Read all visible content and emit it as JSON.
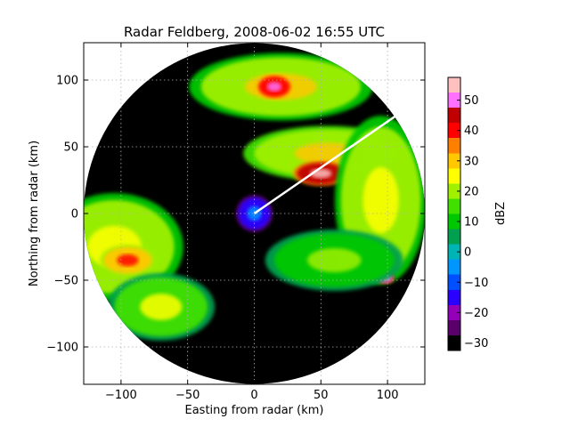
{
  "chart_data": {
    "type": "heatmap",
    "subtype": "radar-ppi",
    "title": "Radar Feldberg, 2008-06-02 16:55 UTC",
    "xlabel": "Easting from radar (km)",
    "ylabel": "Northing from radar (km)",
    "xlim": [
      -128,
      128
    ],
    "ylim": [
      -128,
      128
    ],
    "xticks": [
      -100,
      -50,
      0,
      50,
      100
    ],
    "yticks": [
      -100,
      -50,
      0,
      50,
      100
    ],
    "xtick_labels": [
      "−100",
      "−50",
      "0",
      "50",
      "100"
    ],
    "ytick_labels": [
      "−100",
      "−50",
      "0",
      "50",
      "100"
    ],
    "grid": true,
    "radar_range_km": 128,
    "colorbar": {
      "label": "dBZ",
      "range": [
        -32.5,
        57.5
      ],
      "ticks": [
        -30,
        -20,
        -10,
        0,
        10,
        20,
        30,
        40,
        50
      ],
      "tick_labels": [
        "−30",
        "−20",
        "−10",
        "0",
        "10",
        "20",
        "30",
        "40",
        "50"
      ],
      "colors": [
        "#000000",
        "#5a006a",
        "#9400b8",
        "#2a00ff",
        "#0050ff",
        "#0096ff",
        "#00b4b4",
        "#00a050",
        "#00c800",
        "#40e000",
        "#a0f000",
        "#ffff00",
        "#ffc800",
        "#ff8000",
        "#ff0000",
        "#c00000",
        "#ff70ff",
        "#ffc0c0"
      ]
    },
    "annotation_line": {
      "from": [
        0,
        0
      ],
      "to": [
        106,
        73
      ],
      "color": "#ffffff"
    },
    "echo_regions": [
      {
        "name": "western band",
        "center": [
          -105,
          -25
        ],
        "radii": [
          45,
          35
        ],
        "dbz": 18
      },
      {
        "name": "western core",
        "center": [
          -95,
          -35
        ],
        "radii": [
          18,
          10
        ],
        "dbz": 30
      },
      {
        "name": "southwest band",
        "center": [
          -70,
          -70
        ],
        "radii": [
          35,
          22
        ],
        "dbz": 15
      },
      {
        "name": "north band",
        "center": [
          20,
          95
        ],
        "radii": [
          60,
          22
        ],
        "dbz": 20
      },
      {
        "name": "north core",
        "center": [
          15,
          95
        ],
        "radii": [
          12,
          8
        ],
        "dbz": 40
      },
      {
        "name": "northeast line",
        "center": [
          55,
          45
        ],
        "radii": [
          55,
          18
        ],
        "dbz": 22
      },
      {
        "name": "northeast cells",
        "center": [
          50,
          30
        ],
        "radii": [
          18,
          8
        ],
        "dbz": 45
      },
      {
        "name": "eastern band",
        "center": [
          95,
          10
        ],
        "radii": [
          30,
          55
        ],
        "dbz": 18
      },
      {
        "name": "eastern cell",
        "center": [
          98,
          -48
        ],
        "radii": [
          6,
          4
        ],
        "dbz": 50
      },
      {
        "name": "southeast band",
        "center": [
          60,
          -35
        ],
        "radii": [
          45,
          20
        ],
        "dbz": 12
      },
      {
        "name": "central clutter",
        "center": [
          0,
          0
        ],
        "radii": [
          12,
          12
        ],
        "dbz": -15
      }
    ]
  }
}
